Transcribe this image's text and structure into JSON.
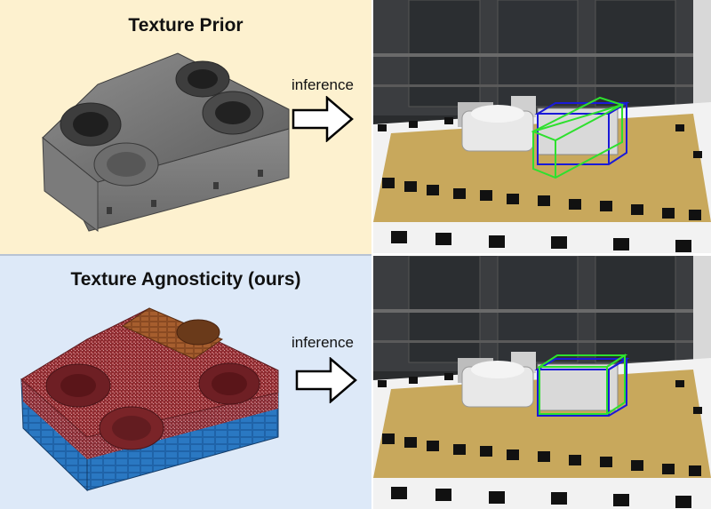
{
  "top_panel": {
    "title": "Texture Prior",
    "arrow_label": "inference"
  },
  "bottom_panel": {
    "title": "Texture Agnosticity (ours)",
    "arrow_label": "inference"
  },
  "colors": {
    "top_background": "#fdf1cf",
    "bottom_background": "#dde9f8",
    "ground_truth_box": "#1a1ad8",
    "prediction_box": "#2ee02e"
  },
  "icons": [
    "right-arrow-icon",
    "right-arrow-icon"
  ]
}
